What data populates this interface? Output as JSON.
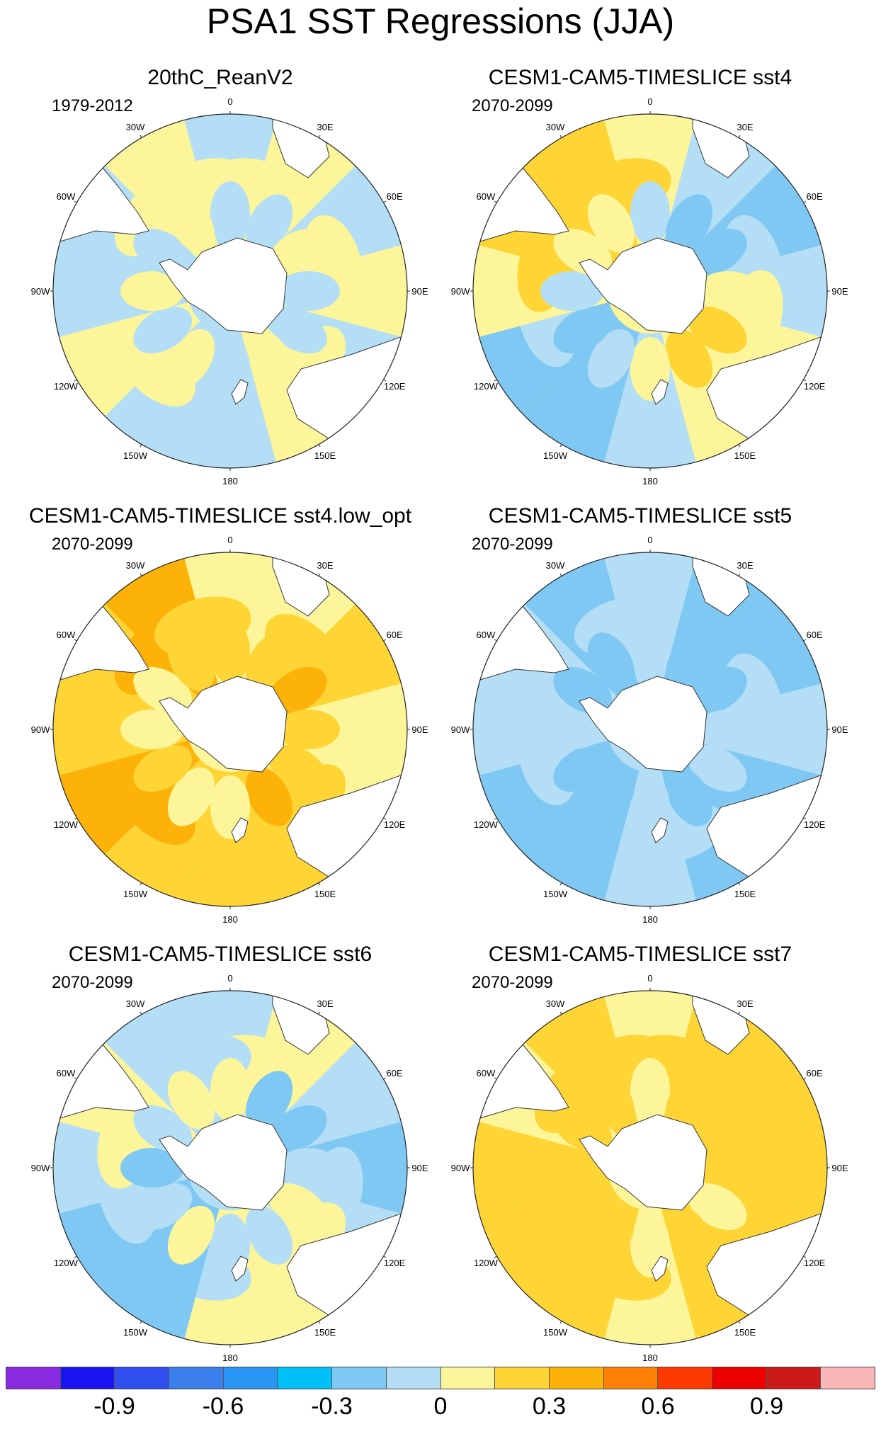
{
  "title": "PSA1 SST Regressions (JJA)",
  "panels": [
    {
      "title": "20thC_ReanV2",
      "period": "1979-2012",
      "regimes": [
        0,
        1,
        0,
        1,
        0,
        1,
        0,
        0,
        1,
        0,
        0,
        1
      ]
    },
    {
      "title": "CESM1-CAM5-TIMESLICE sst4",
      "period": "2070-2099",
      "regimes": [
        1,
        0,
        -1,
        0,
        1,
        1,
        0,
        -1,
        -1,
        1,
        2,
        2
      ]
    },
    {
      "title": "CESM1-CAM5-TIMESLICE sst4.low_opt",
      "period": "2070-2099",
      "regimes": [
        1,
        1,
        2,
        1,
        1,
        2,
        2,
        2,
        3,
        2,
        2,
        3
      ]
    },
    {
      "title": "CESM1-CAM5-TIMESLICE sst5",
      "period": "2070-2099",
      "regimes": [
        0,
        -1,
        -1,
        0,
        -1,
        -1,
        0,
        -1,
        -1,
        0,
        0,
        -1
      ]
    },
    {
      "title": "CESM1-CAM5-TIMESLICE sst6",
      "period": "2070-2099",
      "regimes": [
        0,
        1,
        0,
        -1,
        0,
        1,
        1,
        -1,
        -1,
        0,
        1,
        0
      ]
    },
    {
      "title": "CESM1-CAM5-TIMESLICE sst7",
      "period": "2070-2099",
      "regimes": [
        1,
        2,
        2,
        2,
        2,
        2,
        1,
        2,
        2,
        2,
        1,
        2
      ]
    }
  ],
  "longitude_labels": [
    "0",
    "30E",
    "60E",
    "90E",
    "120E",
    "150E",
    "180",
    "150W",
    "120W",
    "90W",
    "60W",
    "30W"
  ],
  "colorbar": {
    "colors": [
      "#8a2be2",
      "#1a13f2",
      "#2f4ff0",
      "#3a7fec",
      "#2a96f5",
      "#00c0f8",
      "#7ec8f3",
      "#b3def5",
      "#fdf59a",
      "#fed535",
      "#fdb20a",
      "#fe8105",
      "#fe3a00",
      "#ec0000",
      "#cc1a1a",
      "#f9b6b6"
    ],
    "labels": [
      "-0.9",
      "-0.6",
      "-0.3",
      "0",
      "0.3",
      "0.6",
      "0.9"
    ]
  },
  "regime_colors": {
    "-2": "#7ec8f3",
    "-1": "#7ec8f3",
    "0": "#b3def5",
    "1": "#fdf59a",
    "2": "#fed535",
    "3": "#fdb20a"
  }
}
